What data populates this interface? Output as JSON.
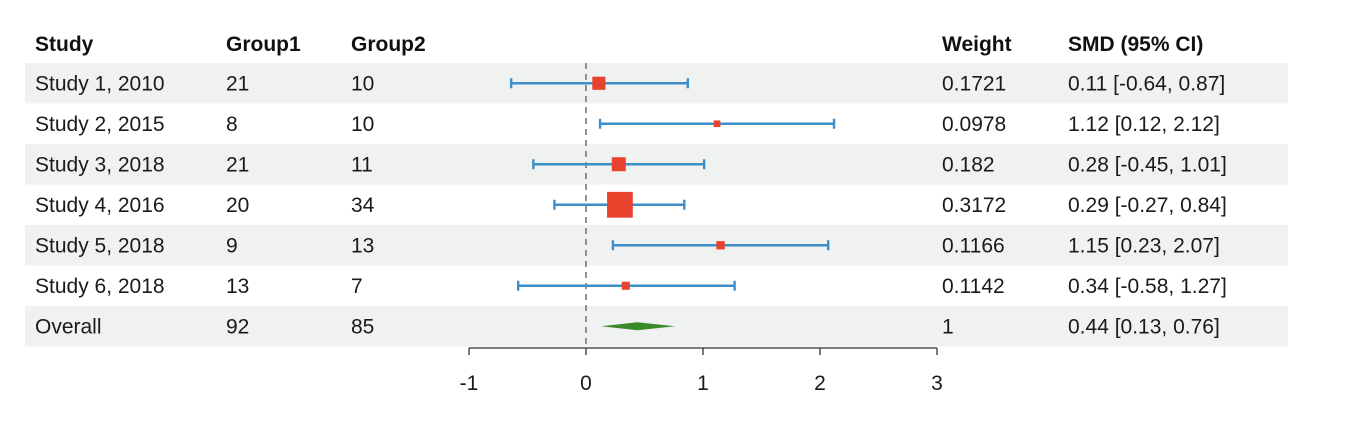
{
  "colors": {
    "stripe": "#f0f1f1",
    "ci_line": "#3d8ec9",
    "point": "#e8432c",
    "diamond": "#3a8a2a",
    "axis": "#333333",
    "null_line": "#777777"
  },
  "columns": {
    "study": "Study",
    "group1": "Group1",
    "group2": "Group2",
    "weight": "Weight",
    "smd": "SMD (95% CI)"
  },
  "chart_data": {
    "type": "forest",
    "xlim": [
      -1,
      3
    ],
    "null_value": 0,
    "x_ticks": [
      -1,
      0,
      1,
      2,
      3
    ],
    "tick_labels": [
      "-1",
      "0",
      "1",
      "2",
      "3"
    ],
    "grid": false,
    "rows": [
      {
        "study": "Study 1, 2010",
        "group1": "21",
        "group2": "10",
        "weight_label": "0.1721",
        "ci_label": "0.11 [-0.64, 0.87]",
        "weight": 0.1721,
        "est": 0.11,
        "lo": -0.64,
        "hi": 0.87
      },
      {
        "study": "Study 2, 2015",
        "group1": "8",
        "group2": "10",
        "weight_label": "0.0978",
        "ci_label": "1.12 [0.12, 2.12]",
        "weight": 0.0978,
        "est": 1.12,
        "lo": 0.12,
        "hi": 2.12
      },
      {
        "study": "Study 3, 2018",
        "group1": "21",
        "group2": "11",
        "weight_label": "0.182",
        "ci_label": "0.28 [-0.45, 1.01]",
        "weight": 0.182,
        "est": 0.28,
        "lo": -0.45,
        "hi": 1.01
      },
      {
        "study": "Study 4, 2016",
        "group1": "20",
        "group2": "34",
        "weight_label": "0.3172",
        "ci_label": "0.29 [-0.27, 0.84]",
        "weight": 0.3172,
        "est": 0.29,
        "lo": -0.27,
        "hi": 0.84
      },
      {
        "study": "Study 5, 2018",
        "group1": "9",
        "group2": "13",
        "weight_label": "0.1166",
        "ci_label": "1.15 [0.23, 2.07]",
        "weight": 0.1166,
        "est": 1.15,
        "lo": 0.23,
        "hi": 2.07
      },
      {
        "study": "Study 6, 2018",
        "group1": "13",
        "group2": "7",
        "weight_label": "0.1142",
        "ci_label": "0.34 [-0.58, 1.27]",
        "weight": 0.1142,
        "est": 0.34,
        "lo": -0.58,
        "hi": 1.27
      }
    ],
    "overall": {
      "study": "Overall",
      "group1": "92",
      "group2": "85",
      "weight_label": "1",
      "ci_label": "0.44 [0.13, 0.76]",
      "est": 0.44,
      "lo": 0.13,
      "hi": 0.76
    }
  }
}
